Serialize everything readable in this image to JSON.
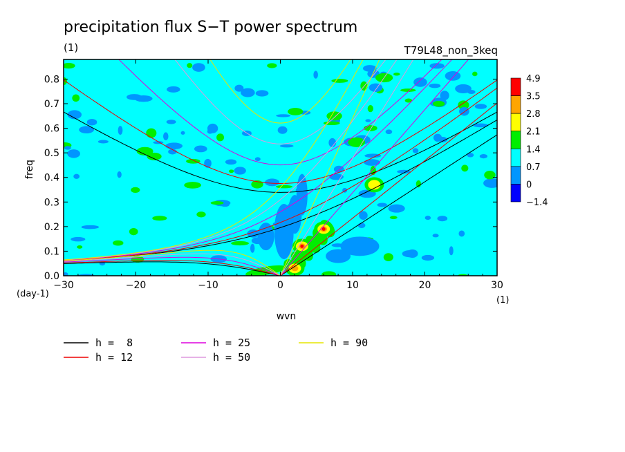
{
  "chart_data": {
    "type": "heatmap",
    "title": "precipitation flux S−T power spectrum",
    "subtitle_left": "(1)",
    "subtitle_right": "T79L48_non_3keq",
    "xlabel": "wvn",
    "ylabel": "freq",
    "x_unit": "(1)",
    "y_unit": "(day-1)",
    "xlim": [
      -30,
      30
    ],
    "ylim": [
      0,
      0.88
    ],
    "x_ticks": [
      -30,
      -20,
      -10,
      0,
      10,
      20,
      30
    ],
    "x_tick_labels": [
      "−30",
      "−20",
      "−10",
      "0",
      "10",
      "20",
      "30"
    ],
    "y_ticks": [
      0,
      0.1,
      0.2,
      0.3,
      0.4,
      0.5,
      0.6,
      0.7,
      0.8
    ],
    "y_tick_labels": [
      "0.0",
      "0.1",
      "0.2",
      "0.3",
      "0.4",
      "0.5",
      "0.6",
      "0.7",
      "0.8"
    ],
    "colorbar": {
      "labels": [
        "4.9",
        "3.5",
        "2.8",
        "2.1",
        "1.4",
        "0.7",
        "0",
        "−1.4"
      ],
      "colors": [
        "#ff0000",
        "#ffa500",
        "#ffff00",
        "#00ee00",
        "#00ffff",
        "#0096ff",
        "#0000ff"
      ]
    },
    "background_level_color": "#00ffff",
    "dispersion_curves": [
      {
        "name": "h =  8",
        "h": 8,
        "color": "#000000"
      },
      {
        "name": "h = 12",
        "h": 12,
        "color": "#ee0000"
      },
      {
        "name": "h = 25",
        "h": 25,
        "color": "#dd00dd"
      },
      {
        "name": "h = 50",
        "h": 50,
        "color": "#dd99dd"
      },
      {
        "name": "h = 90",
        "h": 90,
        "color": "#e6e600"
      }
    ],
    "intense_regions": [
      {
        "x": 3,
        "y": 0.12,
        "level": 4.9
      },
      {
        "x": 6,
        "y": 0.19,
        "level": 4.9
      },
      {
        "x": 2,
        "y": 0.03,
        "level": 3.5
      },
      {
        "x": 13,
        "y": 0.37,
        "level": 2.8
      }
    ]
  }
}
